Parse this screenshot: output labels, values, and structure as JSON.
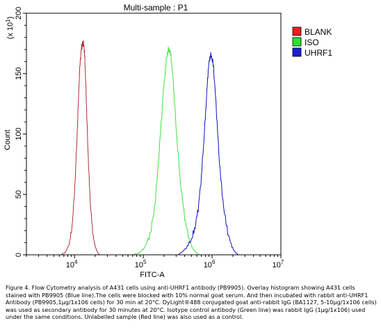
{
  "chart_data": {
    "type": "line",
    "title": "Multi-sample : P1",
    "xlabel": "FITC-A",
    "ylabel": "Count",
    "y_multiplier": "(x 10",
    "y_multiplier_exp": "1",
    "y_multiplier_close": ")",
    "x_scale": "log",
    "xlim": [
      2000,
      10000000
    ],
    "ylim": [
      0,
      200
    ],
    "x_ticks": [
      {
        "base": "10",
        "exp": "4",
        "value": 10000
      },
      {
        "base": "10",
        "exp": "5",
        "value": 100000
      },
      {
        "base": "10",
        "exp": "6",
        "value": 1000000
      },
      {
        "base": "10",
        "exp": "7",
        "value": 10000000
      }
    ],
    "y_ticks": [
      "0",
      "50",
      "100",
      "150",
      "200"
    ],
    "legend_position": "right",
    "series": [
      {
        "name": "BLANK",
        "color": "#b03030",
        "legend_color": "#e8201c",
        "x": [
          6300,
          7400,
          8500,
          9400,
          10300,
          11100,
          11800,
          12400,
          12900,
          13300,
          13800,
          14200,
          14800,
          15600,
          16700,
          18100,
          19700,
          21600,
          23000
        ],
        "y": [
          0,
          2,
          10,
          28,
          65,
          110,
          150,
          168,
          174,
          176,
          172,
          160,
          130,
          90,
          50,
          22,
          8,
          2,
          0
        ]
      },
      {
        "name": "ISO",
        "color": "#40e040",
        "legend_color": "#30e030",
        "x": [
          70000,
          90000,
          110000,
          130000,
          150000,
          170000,
          190000,
          210000,
          225000,
          240000,
          255000,
          275000,
          300000,
          340000,
          390000,
          440000,
          500000,
          580000,
          650000
        ],
        "y": [
          0,
          2,
          8,
          20,
          45,
          85,
          125,
          155,
          168,
          170,
          163,
          140,
          105,
          65,
          35,
          18,
          7,
          2,
          0
        ]
      },
      {
        "name": "UHRF1",
        "color": "#1010b8",
        "legend_color": "#1820d8",
        "x": [
          320000,
          380000,
          450000,
          520000,
          580000,
          640000,
          700000,
          760000,
          820000,
          870000,
          920000,
          980000,
          1050000,
          1140000,
          1250000,
          1400000,
          1600000,
          1850000,
          2100000,
          2400000
        ],
        "y": [
          0,
          3,
          8,
          15,
          26,
          42,
          65,
          95,
          125,
          150,
          163,
          165,
          155,
          125,
          85,
          50,
          25,
          10,
          3,
          0
        ]
      }
    ]
  },
  "caption": {
    "lines": [
      "Figure 4. Flow Cytometry analysis of A431 cells using anti-UHRF1 antibody (PB9905).  Overlay histogram showing A431 cells",
      "stained with PB9905 (Blue line).The cells were blocked with 10% normal goat serum. And then incubated with rabbit anti-UHRF1",
      "Antibody (PB9905,1µg/1x106 cells) for 30 min at 20°C. DyLight®488 conjugated goat anti-rabbit IgG (BA1127, 5-10µg/1x106 cells)",
      "was used as secondary antibody for 30 minutes at 20°C. Isotype control antibody (Green line) was rabbit IgG (1µg/1x106) used",
      "under the same conditions. Unlabelled sample (Red line) was also used as a control."
    ]
  }
}
